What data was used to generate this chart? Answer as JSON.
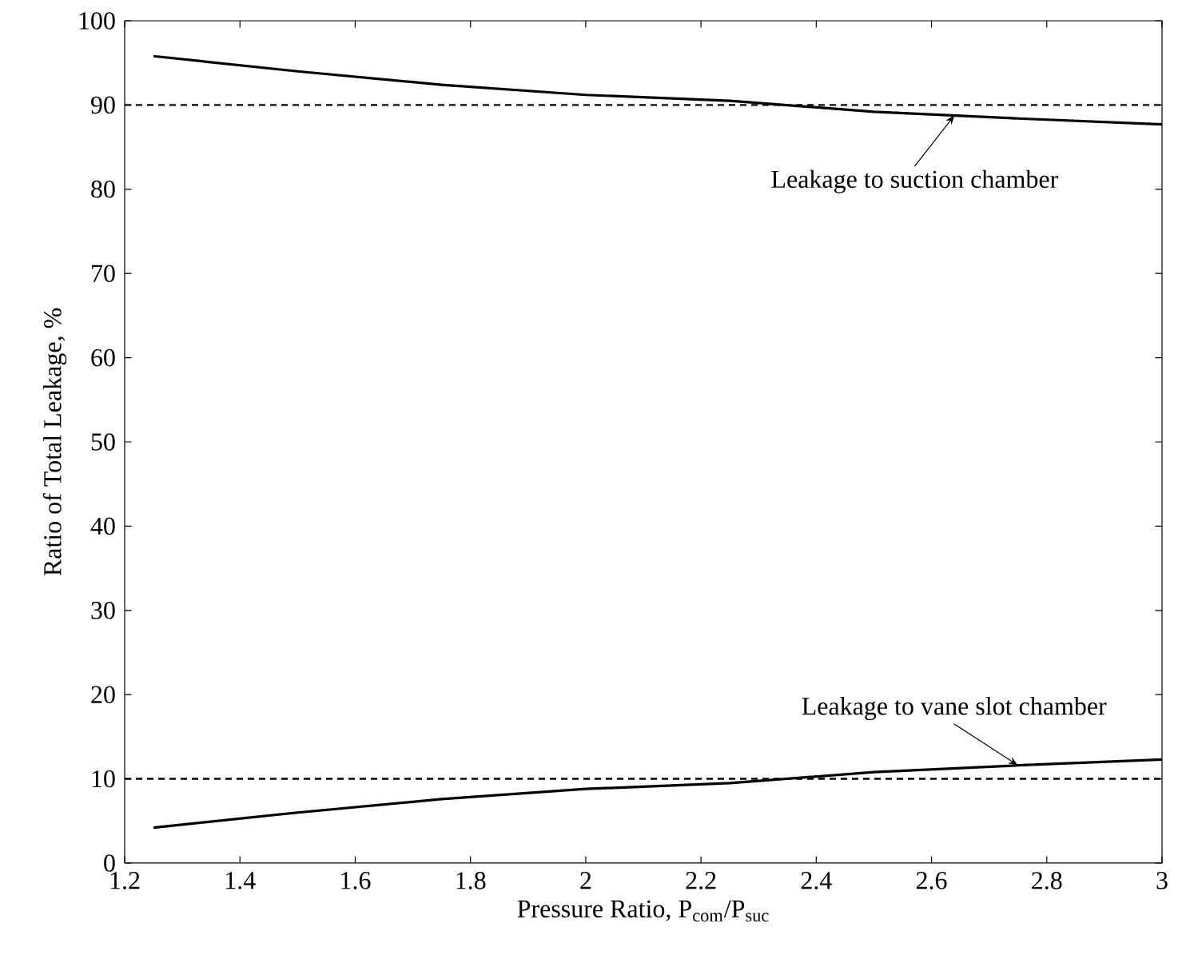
{
  "chart_data": {
    "type": "line",
    "xlabel": "Pressure Ratio, P$_{com}$/P$_{suc}$",
    "ylabel": "Ratio of Total Leakage, %",
    "x": [
      1.25,
      1.5,
      1.75,
      2.0,
      2.25,
      2.5,
      2.75,
      3.0
    ],
    "series": [
      {
        "color": "#000000",
        "values": [
          95.8,
          94.0,
          92.4,
          91.2,
          90.5,
          89.2,
          88.4,
          87.7
        ]
      },
      {
        "color": "#000000",
        "values": [
          4.2,
          6.0,
          7.6,
          8.8,
          9.5,
          10.8,
          11.6,
          12.3
        ]
      }
    ],
    "xlim": [
      1.2,
      3.0
    ],
    "ylim": [
      0,
      100
    ],
    "xticks": [
      1.2,
      1.4,
      1.6,
      1.8,
      2,
      2.2,
      2.4,
      2.6,
      2.8,
      3
    ],
    "yticks": [
      0,
      10,
      20,
      30,
      40,
      50,
      60,
      70,
      80,
      90,
      100
    ],
    "ref_lines": [
      {
        "axis": "y",
        "value": 90,
        "color": "#000000",
        "line_style": "dashed"
      },
      {
        "axis": "y",
        "value": 10,
        "color": "#000000",
        "line_style": "dashed"
      }
    ],
    "annotations": [
      {
        "text": "Leakage to suction chamber",
        "x": 2.64,
        "y": 88.8
      },
      {
        "text": "Leakage to vane slot chamber",
        "x": 2.75,
        "y": 11.6
      }
    ],
    "marker": "none",
    "line_style": "solid"
  }
}
